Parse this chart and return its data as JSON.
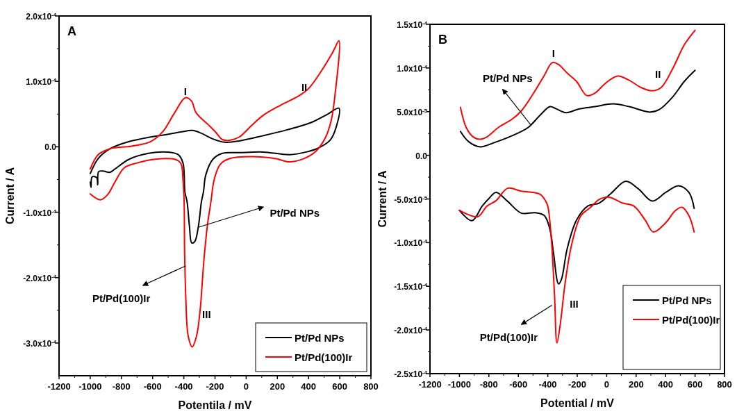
{
  "chart_data": [
    {
      "type": "line",
      "xlabel": "Potentila / mV",
      "ylabel": "Current / A",
      "xlim": [
        -1200,
        800
      ],
      "xticks": [
        -1200,
        -1000,
        -800,
        -600,
        -400,
        -200,
        0,
        200,
        400,
        600,
        800
      ],
      "ylim": [
        -0.00035,
        0.0002
      ],
      "yticks": [
        {
          "value": -0.0003,
          "label": "-3.0x10$^{-4}$"
        },
        {
          "value": -0.0002,
          "label": "-2.0x10$^{-4}$"
        },
        {
          "value": -0.0001,
          "label": "-1.0x10$^{-4}$"
        },
        {
          "value": 0,
          "label": "0.0"
        },
        {
          "value": 0.0001,
          "label": "1.0x10$^{-4}$"
        },
        {
          "value": 0.0002,
          "label": "2.0x10$^{-4}$"
        }
      ],
      "legend": "bottom right",
      "series": [
        {
          "name": "Pt/Pd NPs",
          "color": "#000000",
          "x": [
            -1000,
            -949,
            -873,
            -750,
            -612,
            -505,
            -413,
            -344,
            -290,
            -213,
            -137,
            -44,
            109,
            263,
            416,
            523,
            595,
            577,
            538,
            462,
            385,
            278,
            109,
            -44,
            -152,
            -213,
            -259,
            -274,
            -287,
            -306,
            -330,
            -349,
            -364,
            -379,
            -393,
            -405,
            -436,
            -505,
            -627,
            -750,
            -842,
            -873,
            -919,
            -946,
            -952,
            -959,
            -988,
            -995,
            -1000
          ],
          "values": [
            -4.1e-05,
            -1.8e-05,
            -3e-06,
            8e-06,
            1.5e-05,
            1.9e-05,
            2.3e-05,
            2.5e-05,
            2.1e-05,
            1.2e-05,
            7e-06,
            9e-06,
            1.7e-05,
            2.6e-05,
            3.7e-05,
            5e-05,
            5.9e-05,
            3e-05,
            1e-05,
            -2e-06,
            -8e-06,
            -1.2e-05,
            -8e-06,
            -9e-06,
            -1e-05,
            -1.9e-05,
            -4.3e-05,
            -6.9e-05,
            -8.4e-05,
            -0.000121,
            -0.000145,
            -0.000147,
            -0.000121,
            -8.4e-05,
            -6.9e-05,
            -2.5e-05,
            -1.2e-05,
            -8e-06,
            -1e-05,
            -1.9e-05,
            -3.4e-05,
            -3.9e-05,
            -3.7e-05,
            -3.8e-05,
            -5.8e-05,
            -4.7e-05,
            -4.6e-05,
            -6.2e-05,
            -5.4e-05
          ]
        },
        {
          "name": "Pt/Pd(100)Ir",
          "color": "#ff0000",
          "x": [
            -1000,
            -949,
            -873,
            -735,
            -612,
            -535,
            -459,
            -390,
            -351,
            -321,
            -244,
            -198,
            -152,
            -106,
            -44,
            32,
            109,
            216,
            339,
            400,
            477,
            554,
            595,
            569,
            546,
            508,
            446,
            370,
            278,
            186,
            32,
            -106,
            -167,
            -206,
            -226,
            -249,
            -272,
            -295,
            -318,
            -346,
            -372,
            -387,
            -395,
            -398,
            -405,
            -420,
            -459,
            -581,
            -704,
            -781,
            -842,
            -888,
            -934,
            -1000
          ],
          "values": [
            -3.4e-05,
            -1.2e-05,
            -3e-06,
            1e-06,
            8e-06,
            2.3e-05,
            5.2e-05,
            7.5e-05,
            7e-05,
            5.2e-05,
            3.4e-05,
            2.3e-05,
            1.1e-05,
            1e-05,
            1.5e-05,
            3.2e-05,
            4.8e-05,
            6.3e-05,
            7.8e-05,
            8.9e-05,
            0.000114,
            0.000144,
            0.000162,
            7.8e-05,
            4.1e-05,
            1.4e-05,
            -7e-06,
            -1.8e-05,
            -2.3e-05,
            -1.8e-05,
            -1.5e-05,
            -1.8e-05,
            -2.7e-05,
            -5.1e-05,
            -8.4e-05,
            -0.000121,
            -0.000176,
            -0.000249,
            -0.000289,
            -0.000306,
            -0.000289,
            -0.000231,
            -0.000157,
            -8.4e-05,
            -5.1e-05,
            -2.5e-05,
            -1.9e-05,
            -1.9e-05,
            -2.5e-05,
            -3.2e-05,
            -5.4e-05,
            -7.3e-05,
            -8.1e-05,
            -7.2e-05
          ]
        }
      ],
      "annotations": [
        "A",
        "I",
        "II",
        "III",
        "Pt/Pd NPs",
        "Pt/Pd(100)Ir"
      ]
    },
    {
      "type": "line",
      "xlabel": "Potential / mV",
      "ylabel": "Current / A",
      "xlim": [
        -1200,
        800
      ],
      "xticks": [
        -1200,
        -1000,
        -800,
        -600,
        -400,
        -200,
        0,
        200,
        400,
        600,
        800
      ],
      "ylim": [
        -0.00025,
        0.00015
      ],
      "yticks": [
        {
          "value": -0.00025,
          "label": "-2.5x10$^{-4}$"
        },
        {
          "value": -0.0002,
          "label": "-2.0x10$^{-4}$"
        },
        {
          "value": -0.00015,
          "label": "-1.5x10$^{-4}$"
        },
        {
          "value": -0.0001,
          "label": "-1.0x10$^{-4}$"
        },
        {
          "value": -5e-05,
          "label": "-5.0x10$^{-5}$"
        },
        {
          "value": 0,
          "label": "0.0"
        },
        {
          "value": 5e-05,
          "label": "5.0x10$^{-5}$"
        },
        {
          "value": 0.0001,
          "label": "1.0x10$^{-4}$"
        },
        {
          "value": 0.00015,
          "label": "1.5x10$^{-4}$"
        }
      ],
      "legend": "bottom right",
      "series": [
        {
          "name": "Pt/Pd NPs",
          "color": "#000000",
          "x": [
            -993,
            -938,
            -860,
            -767,
            -642,
            -533,
            -455,
            -385,
            -346,
            -276,
            -190,
            -81,
            44,
            153,
            293,
            356,
            449,
            527,
            600,
            null,
            -1000,
            -915,
            -845,
            -798,
            -751,
            -673,
            -580,
            -486,
            -424,
            -385,
            -361,
            -327,
            -307,
            -268,
            -205,
            -128,
            -50,
            28,
            130,
            215,
            309,
            402,
            488,
            558,
            594
          ],
          "values": [
            2.73e-05,
            1.57e-05,
            9.7e-06,
            1.43e-05,
            2.24e-05,
            3.19e-05,
            4.54e-05,
            5.57e-05,
            5.35e-05,
            4.89e-05,
            5.3e-05,
            5.57e-05,
            5.89e-05,
            5.57e-05,
            4.95e-05,
            5.22e-05,
            6.7e-05,
            8.46e-05,
            9.73e-05,
            null,
            -6.3e-05,
            -7.49e-05,
            -5.81e-05,
            -4.92e-05,
            -4.24e-05,
            -5.27e-05,
            -6.62e-05,
            -6.57e-05,
            -6.89e-05,
            -8.51e-05,
            -0.0001122,
            -0.0001473,
            -0.0001419,
            -0.0001068,
            -7.43e-05,
            -5.81e-05,
            -5.46e-05,
            -4.38e-05,
            -2.97e-05,
            -3.84e-05,
            -5.24e-05,
            -4.24e-05,
            -3.49e-05,
            -4.24e-05,
            -6.08e-05
          ]
        },
        {
          "name": "Pt/Pd(100)Ir",
          "color": "#ff0000",
          "x": [
            -993,
            -954,
            -907,
            -860,
            -813,
            -735,
            -642,
            -580,
            -502,
            -424,
            -369,
            -330,
            -268,
            -205,
            -135,
            -81,
            -3,
            75,
            153,
            231,
            309,
            371,
            449,
            527,
            600,
            null,
            -1000,
            -876,
            -813,
            -751,
            -673,
            -580,
            -455,
            -416,
            -400,
            -377,
            -354,
            -338,
            -315,
            -283,
            -237,
            -174,
            -112,
            -50,
            12,
            106,
            184,
            262,
            317,
            402,
            465,
            512,
            558,
            594
          ],
          "values": [
            5.49e-05,
            3.19e-05,
            2.11e-05,
            1.84e-05,
            2.11e-05,
            3.19e-05,
            4.14e-05,
            5.08e-05,
            6.97e-05,
            9.14e-05,
            0.0001062,
            0.0001043,
            9.41e-05,
            8.46e-05,
            6.84e-05,
            7.11e-05,
            8.32e-05,
            9.08e-05,
            8.59e-05,
            7.78e-05,
            7.38e-05,
            7.78e-05,
            9.95e-05,
            0.0001265,
            0.0001432,
            null,
            -6.3e-05,
            -7.03e-05,
            -5.81e-05,
            -5.19e-05,
            -3.78e-05,
            -4.11e-05,
            -4.43e-05,
            -5.19e-05,
            -5.81e-05,
            -9.32e-05,
            -0.0001608,
            -0.0002149,
            -0.0001932,
            -0.0001473,
            -0.0001014,
            -6.89e-05,
            -6e-05,
            -5.05e-05,
            -4.78e-05,
            -5.46e-05,
            -5.81e-05,
            -7.43e-05,
            -8.78e-05,
            -7.7e-05,
            -6.35e-05,
            -5.95e-05,
            -6.89e-05,
            -8.78e-05
          ]
        }
      ],
      "annotations": [
        "B",
        "I",
        "II",
        "III",
        "Pt/Pd NPs",
        "Pt/Pd(100)Ir"
      ]
    }
  ]
}
